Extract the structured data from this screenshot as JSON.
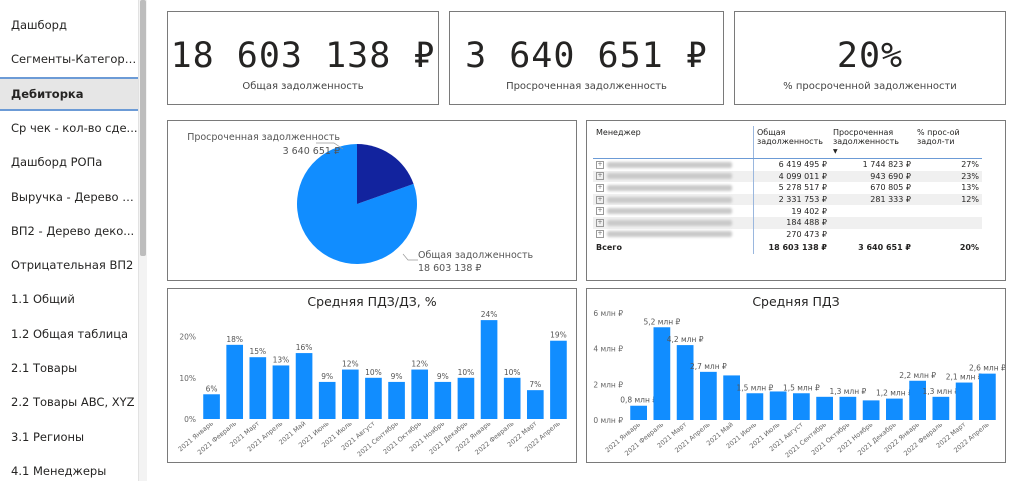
{
  "sidebar": {
    "items": [
      {
        "label": "Дашборд",
        "active": false
      },
      {
        "label": "Сегменты-Категории",
        "active": false
      },
      {
        "label": "Дебиторка",
        "active": true
      },
      {
        "label": "Ср чек - кол-во сде...",
        "active": false
      },
      {
        "label": "Дашборд РОПа",
        "active": false
      },
      {
        "label": "Выручка - Дерево д...",
        "active": false
      },
      {
        "label": "ВП2 - Дерево деко...",
        "active": false
      },
      {
        "label": "Отрицательная ВП2",
        "active": false
      },
      {
        "label": "1.1 Общий",
        "active": false
      },
      {
        "label": "1.2 Общая таблица",
        "active": false
      },
      {
        "label": "2.1 Товары",
        "active": false
      },
      {
        "label": "2.2 Товары ABC, XYZ",
        "active": false
      },
      {
        "label": "3.1 Регионы",
        "active": false
      },
      {
        "label": "4.1 Менеджеры",
        "active": false
      }
    ]
  },
  "kpis": [
    {
      "value": "18 603 138 ₽",
      "label": "Общая задолженность"
    },
    {
      "value": "3 640 651 ₽",
      "label": "Просроченная задолженность"
    },
    {
      "value": "20%",
      "label": "% просроченной задолженности"
    }
  ],
  "pie": {
    "overdue_label": "Просроченная задолженность",
    "overdue_value": "3 640 651 ₽",
    "total_label": "Общая задолженность",
    "total_value": "18 603 138 ₽",
    "colors": {
      "overdue": "#12239e",
      "total": "#118dff"
    }
  },
  "table": {
    "headers": [
      "Менеджер",
      "Общая задолженность",
      "Просроченная задолженность",
      "% прос-ой задол-ти"
    ],
    "rows": [
      {
        "total": "6 419 495 ₽",
        "overdue": "1 744 823 ₽",
        "pct": "27%"
      },
      {
        "total": "4 099 011 ₽",
        "overdue": "943 690 ₽",
        "pct": "23%"
      },
      {
        "total": "5 278 517 ₽",
        "overdue": "670 805 ₽",
        "pct": "13%"
      },
      {
        "total": "2 331 753 ₽",
        "overdue": "281 333 ₽",
        "pct": "12%"
      },
      {
        "total": "19 402 ₽",
        "overdue": "",
        "pct": ""
      },
      {
        "total": "184 488 ₽",
        "overdue": "",
        "pct": ""
      },
      {
        "total": "270 473 ₽",
        "overdue": "",
        "pct": ""
      }
    ],
    "total_row": {
      "label": "Всего",
      "total": "18 603 138 ₽",
      "overdue": "3 640 651 ₽",
      "pct": "20%"
    }
  },
  "chart_data": [
    {
      "type": "bar",
      "title": "Средняя ПДЗ/ДЗ, %",
      "categories": [
        "2021 Январь",
        "2021 Февраль",
        "2021 Март",
        "2021 Апрель",
        "2021 Май",
        "2021 Июнь",
        "2021 Июль",
        "2021 Август",
        "2021 Сентябрь",
        "2021 Октябрь",
        "2021 Ноябрь",
        "2021 Декабрь",
        "2022 Январь",
        "2022 Февраль",
        "2022 Март",
        "2022 Апрель"
      ],
      "values": [
        6,
        18,
        15,
        13,
        16,
        9,
        12,
        10,
        9,
        12,
        9,
        10,
        24,
        10,
        7,
        19
      ],
      "labels": [
        "6%",
        "18%",
        "15%",
        "13%",
        "16%",
        "9%",
        "12%",
        "10%",
        "9%",
        "12%",
        "9%",
        "10%",
        "24%",
        "10%",
        "7%",
        "19%"
      ],
      "yticks": [
        "0%",
        "10%",
        "20%"
      ],
      "ytick_values": [
        0,
        10,
        20
      ],
      "ylim": [
        0,
        25
      ],
      "color": "#118dff"
    },
    {
      "type": "bar",
      "title": "Средняя ПДЗ",
      "categories": [
        "2021 Январь",
        "2021 Февраль",
        "2021 Март",
        "2021 Апрель",
        "2021 Май",
        "2021 Июнь",
        "2021 Июль",
        "2021 Август",
        "2021 Сентябрь",
        "2021 Октябрь",
        "2021 Ноябрь",
        "2021 Декабрь",
        "2022 Январь",
        "2022 Февраль",
        "2022 Март",
        "2022 Апрель"
      ],
      "values": [
        0.8,
        5.2,
        4.2,
        2.7,
        2.5,
        1.5,
        1.6,
        1.5,
        1.3,
        1.3,
        1.1,
        1.2,
        2.2,
        1.3,
        2.1,
        2.6
      ],
      "labels": [
        "0,8 млн ₽",
        "5,2 млн ₽",
        "4,2 млн ₽",
        "2,7 млн ₽",
        "",
        "1,5 млн ₽",
        "",
        "1,5 млн ₽",
        "",
        "1,3 млн ₽",
        "",
        "1,2 млн ₽",
        "2,2 млн ₽",
        "1,3 млн ₽",
        "2,1 млн ₽",
        "2,6 млн ₽"
      ],
      "yticks": [
        "0 млн ₽",
        "2 млн ₽",
        "4 млн ₽",
        "6 млн ₽"
      ],
      "ytick_values": [
        0,
        2,
        4,
        6
      ],
      "ylim": [
        0,
        6
      ],
      "color": "#118dff"
    }
  ]
}
